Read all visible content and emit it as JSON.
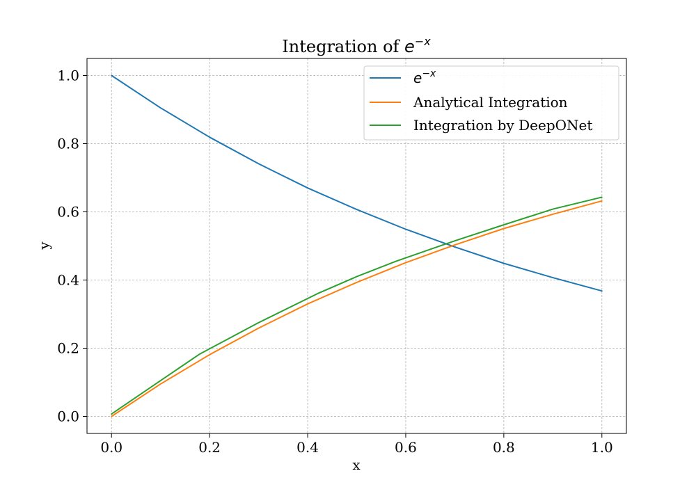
{
  "chart_data": {
    "type": "line",
    "title": "Integration of e^{-x}",
    "title_parts": {
      "prefix": "Integration of ",
      "base": "e",
      "exponent": "−x"
    },
    "xlabel": "x",
    "ylabel": "y",
    "xlim": [
      -0.05,
      1.05
    ],
    "ylim": [
      -0.05,
      1.05
    ],
    "xticks": [
      0.0,
      0.2,
      0.4,
      0.6,
      0.8,
      1.0
    ],
    "xtick_labels": [
      "0.0",
      "0.2",
      "0.4",
      "0.6",
      "0.8",
      "1.0"
    ],
    "yticks": [
      0.0,
      0.2,
      0.4,
      0.6,
      0.8,
      1.0
    ],
    "ytick_labels": [
      "0.0",
      "0.2",
      "0.4",
      "0.6",
      "0.8",
      "1.0"
    ],
    "grid": true,
    "legend_position": "top-right",
    "series": [
      {
        "name": "e^{-x}",
        "legend_parts": {
          "base": "e",
          "exponent": "−x"
        },
        "color": "#1f77b4",
        "x": [
          0.0,
          0.1,
          0.2,
          0.3,
          0.4,
          0.5,
          0.6,
          0.7,
          0.8,
          0.9,
          1.0
        ],
        "y": [
          1.0,
          0.905,
          0.819,
          0.741,
          0.67,
          0.607,
          0.549,
          0.497,
          0.449,
          0.407,
          0.368
        ]
      },
      {
        "name": "Analytical Integration",
        "color": "#ff7f0e",
        "x": [
          0.0,
          0.1,
          0.2,
          0.3,
          0.4,
          0.5,
          0.6,
          0.7,
          0.8,
          0.9,
          1.0
        ],
        "y": [
          0.0,
          0.095,
          0.181,
          0.259,
          0.33,
          0.393,
          0.451,
          0.503,
          0.551,
          0.593,
          0.632
        ]
      },
      {
        "name": "Integration by DeepONet",
        "color": "#2ca02c",
        "x": [
          0.0,
          0.1,
          0.18,
          0.3,
          0.42,
          0.5,
          0.58,
          0.64,
          0.7,
          0.8,
          0.9,
          1.0
        ],
        "y": [
          0.007,
          0.105,
          0.183,
          0.275,
          0.36,
          0.41,
          0.455,
          0.485,
          0.515,
          0.562,
          0.608,
          0.643
        ]
      }
    ]
  }
}
